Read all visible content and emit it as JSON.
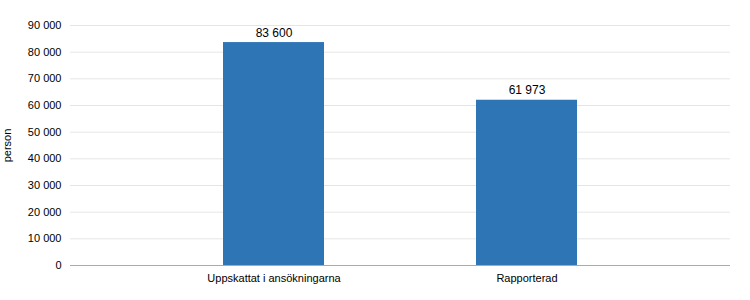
{
  "chart_data": {
    "type": "bar",
    "categories": [
      "Uppskattat i ansökningarna",
      "Rapporterad"
    ],
    "values": [
      83600,
      61973
    ],
    "value_labels": [
      "83 600",
      "61 973"
    ],
    "color": "#2E75B6",
    "ylabel": "person",
    "ylim": [
      0,
      90000
    ],
    "yticks": [
      0,
      {
        "value": 10000,
        "label": "10 000"
      },
      {
        "value": 20000,
        "label": "20 000"
      },
      {
        "value": 30000,
        "label": "30 000"
      },
      {
        "value": 40000,
        "label": "40 000"
      },
      {
        "value": 50000,
        "label": "50 000"
      },
      {
        "value": 60000,
        "label": "60 000"
      },
      {
        "value": 70000,
        "label": "70 000"
      },
      {
        "value": 80000,
        "label": "80 000"
      },
      {
        "value": 90000,
        "label": "90 000"
      }
    ],
    "grid": true,
    "data_labels": true
  }
}
